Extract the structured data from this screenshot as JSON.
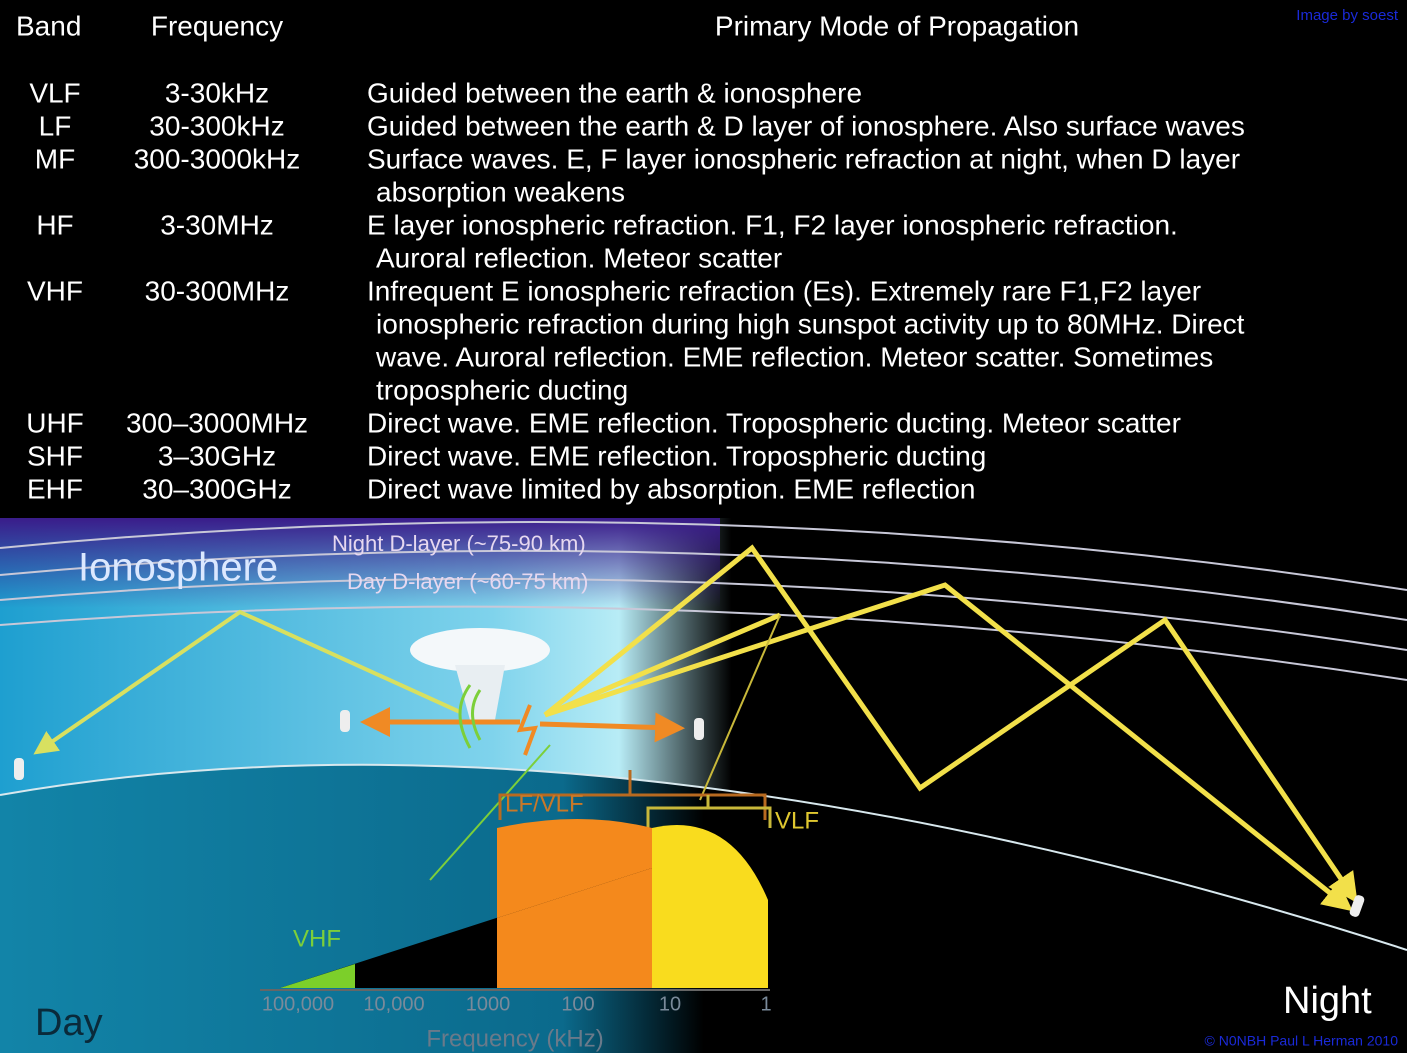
{
  "credit_top": "Image by soest",
  "table": {
    "headers": [
      "Band",
      "Frequency",
      "Primary Mode of Propagation"
    ],
    "rows": [
      {
        "band": "VLF",
        "frequency": "3-30kHz",
        "mode": [
          "Guided between the earth & ionosphere"
        ]
      },
      {
        "band": "LF",
        "frequency": "30-300kHz",
        "mode": [
          "Guided between the earth & D layer of ionosphere. Also surface waves"
        ]
      },
      {
        "band": "MF",
        "frequency": "300-3000kHz",
        "mode": [
          "Surface waves. E, F layer ionospheric refraction at night, when D layer",
          "absorption weakens"
        ]
      },
      {
        "band": "HF",
        "frequency": "3-30MHz",
        "mode": [
          "E layer ionospheric refraction. F1, F2 layer ionospheric refraction.",
          "Auroral reflection. Meteor scatter"
        ]
      },
      {
        "band": "VHF",
        "frequency": "30-300MHz",
        "mode": [
          "Infrequent E ionospheric refraction (Es). Extremely rare F1,F2 layer",
          "ionospheric refraction during high sunspot activity up to 80MHz. Direct",
          "wave. Auroral reflection.  EME reflection. Meteor scatter. Sometimes",
          "tropospheric ducting"
        ]
      },
      {
        "band": "UHF",
        "frequency": "300–3000MHz",
        "mode": [
          "Direct wave. EME reflection. Tropospheric ducting. Meteor scatter"
        ]
      },
      {
        "band": "SHF",
        "frequency": "3–30GHz",
        "mode": [
          "Direct wave. EME reflection. Tropospheric ducting"
        ]
      },
      {
        "band": "EHF",
        "frequency": "30–300GHz",
        "mode": [
          "Direct wave limited by absorption. EME reflection"
        ]
      }
    ]
  },
  "diagram": {
    "ionosphere": "Ionosphere",
    "night_layer": "Night D-layer (~75-90 km)",
    "day_layer": "Day D-layer (~60-75 km)",
    "lf_vlf": "LF/VLF",
    "vlf": "VLF",
    "vhf": "VHF",
    "axis_ticks": [
      "100,000",
      "10,000",
      "1000",
      "100",
      "10",
      "1"
    ],
    "axis_label": "Frequency (kHz)",
    "day": "Day",
    "night": "Night",
    "copyright": "© N0NBH Paul L Herman 2010"
  }
}
